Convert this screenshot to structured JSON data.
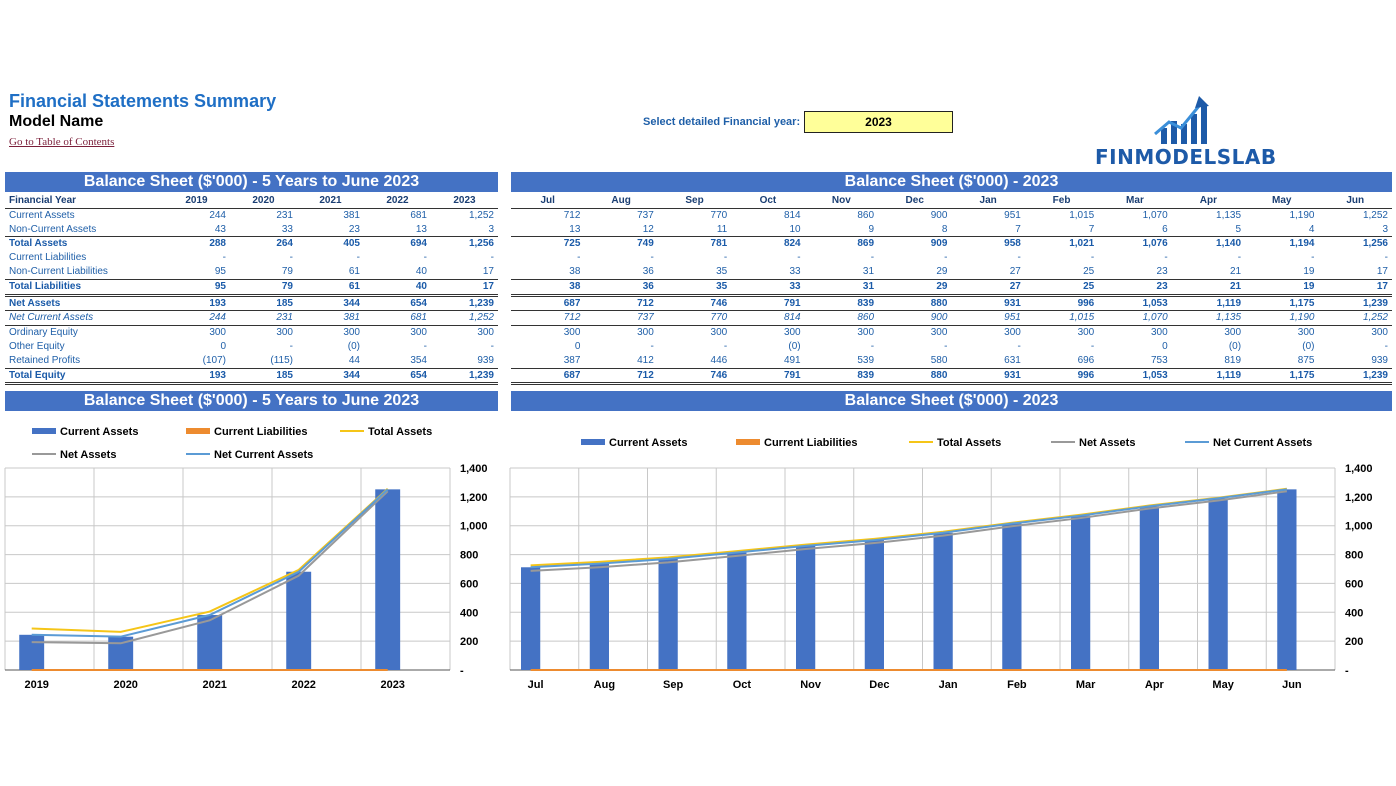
{
  "header": {
    "title": "Financial Statements Summary",
    "model_name": "Model Name",
    "toc_link": "Go to Table of Contents",
    "select_label": "Select detailed Financial year:",
    "selected_year": "2023",
    "logo_text": "FINMODELSLAB"
  },
  "left_table": {
    "banner": "Balance Sheet ($'000) - 5 Years to June 2023",
    "header_label": "Financial Year",
    "columns": [
      "2019",
      "2020",
      "2021",
      "2022",
      "2023"
    ],
    "rows": [
      {
        "label": "Current Assets",
        "values": [
          "244",
          "231",
          "381",
          "681",
          "1,252"
        ],
        "style": ""
      },
      {
        "label": "Non-Current Assets",
        "values": [
          "43",
          "33",
          "23",
          "13",
          "3"
        ],
        "style": "uline"
      },
      {
        "label": "Total Assets",
        "values": [
          "288",
          "264",
          "405",
          "694",
          "1,256"
        ],
        "style": "bold"
      },
      {
        "label": "Current Liabilities",
        "values": [
          "-",
          "-",
          "-",
          "-",
          "-"
        ],
        "style": ""
      },
      {
        "label": "Non-Current Liabilities",
        "values": [
          "95",
          "79",
          "61",
          "40",
          "17"
        ],
        "style": "uline"
      },
      {
        "label": "Total Liabilities",
        "values": [
          "95",
          "79",
          "61",
          "40",
          "17"
        ],
        "style": "bold dbl"
      },
      {
        "label": "Net Assets",
        "values": [
          "193",
          "185",
          "344",
          "654",
          "1,239"
        ],
        "style": "bold uline"
      },
      {
        "label": "Net Current Assets",
        "values": [
          "244",
          "231",
          "381",
          "681",
          "1,252"
        ],
        "style": "ital uline"
      },
      {
        "label": "Ordinary Equity",
        "values": [
          "300",
          "300",
          "300",
          "300",
          "300"
        ],
        "style": ""
      },
      {
        "label": "Other Equity",
        "values": [
          "0",
          "-",
          "(0)",
          "-",
          "-"
        ],
        "style": ""
      },
      {
        "label": "Retained Profits",
        "values": [
          "(107)",
          "(115)",
          "44",
          "354",
          "939"
        ],
        "style": "uline"
      },
      {
        "label": "Total Equity",
        "values": [
          "193",
          "185",
          "344",
          "654",
          "1,239"
        ],
        "style": "bold dbl"
      }
    ]
  },
  "right_table": {
    "banner": "Balance Sheet ($'000) - 2023",
    "columns": [
      "Jul",
      "Aug",
      "Sep",
      "Oct",
      "Nov",
      "Dec",
      "Jan",
      "Feb",
      "Mar",
      "Apr",
      "May",
      "Jun"
    ],
    "rows": [
      {
        "values": [
          "712",
          "737",
          "770",
          "814",
          "860",
          "900",
          "951",
          "1,015",
          "1,070",
          "1,135",
          "1,190",
          "1,252"
        ],
        "style": ""
      },
      {
        "values": [
          "13",
          "12",
          "11",
          "10",
          "9",
          "8",
          "7",
          "7",
          "6",
          "5",
          "4",
          "3"
        ],
        "style": "uline"
      },
      {
        "values": [
          "725",
          "749",
          "781",
          "824",
          "869",
          "909",
          "958",
          "1,021",
          "1,076",
          "1,140",
          "1,194",
          "1,256"
        ],
        "style": "bold"
      },
      {
        "values": [
          "-",
          "-",
          "-",
          "-",
          "-",
          "-",
          "-",
          "-",
          "-",
          "-",
          "-",
          "-"
        ],
        "style": ""
      },
      {
        "values": [
          "38",
          "36",
          "35",
          "33",
          "31",
          "29",
          "27",
          "25",
          "23",
          "21",
          "19",
          "17"
        ],
        "style": "uline"
      },
      {
        "values": [
          "38",
          "36",
          "35",
          "33",
          "31",
          "29",
          "27",
          "25",
          "23",
          "21",
          "19",
          "17"
        ],
        "style": "bold dbl"
      },
      {
        "values": [
          "687",
          "712",
          "746",
          "791",
          "839",
          "880",
          "931",
          "996",
          "1,053",
          "1,119",
          "1,175",
          "1,239"
        ],
        "style": "bold uline"
      },
      {
        "values": [
          "712",
          "737",
          "770",
          "814",
          "860",
          "900",
          "951",
          "1,015",
          "1,070",
          "1,135",
          "1,190",
          "1,252"
        ],
        "style": "ital uline"
      },
      {
        "values": [
          "300",
          "300",
          "300",
          "300",
          "300",
          "300",
          "300",
          "300",
          "300",
          "300",
          "300",
          "300"
        ],
        "style": ""
      },
      {
        "values": [
          "0",
          "-",
          "-",
          "(0)",
          "-",
          "-",
          "-",
          "-",
          "0",
          "(0)",
          "(0)",
          "-"
        ],
        "style": ""
      },
      {
        "values": [
          "387",
          "412",
          "446",
          "491",
          "539",
          "580",
          "631",
          "696",
          "753",
          "819",
          "875",
          "939"
        ],
        "style": "uline"
      },
      {
        "values": [
          "687",
          "712",
          "746",
          "791",
          "839",
          "880",
          "931",
          "996",
          "1,053",
          "1,119",
          "1,175",
          "1,239"
        ],
        "style": "bold dbl"
      }
    ]
  },
  "left_chart_banner": "Balance Sheet ($'000) - 5 Years to June 2023",
  "right_chart_banner": "Balance Sheet ($'000) - 2023",
  "colors": {
    "current_assets": "#4472c4",
    "current_liabilities": "#ed8b2f",
    "total_assets": "#f5c518",
    "net_assets": "#999999",
    "net_current_assets": "#5b9bd5"
  },
  "chart_data": [
    {
      "type": "bar",
      "categories": [
        "2019",
        "2020",
        "2021",
        "2022",
        "2023"
      ],
      "ylim": [
        0,
        1400
      ],
      "yticks": [
        "-",
        "200",
        "400",
        "600",
        "800",
        "1,000",
        "1,200",
        "1,400"
      ],
      "series": [
        {
          "name": "Current Assets",
          "kind": "bar",
          "values": [
            244,
            231,
            381,
            681,
            1252
          ]
        },
        {
          "name": "Current Liabilities",
          "kind": "line",
          "values": [
            0,
            0,
            0,
            0,
            0
          ]
        },
        {
          "name": "Total Assets",
          "kind": "line",
          "values": [
            288,
            264,
            405,
            694,
            1256
          ]
        },
        {
          "name": "Net Assets",
          "kind": "line",
          "values": [
            193,
            185,
            344,
            654,
            1239
          ]
        },
        {
          "name": "Net Current Assets",
          "kind": "line",
          "values": [
            244,
            231,
            381,
            681,
            1252
          ]
        }
      ]
    },
    {
      "type": "bar",
      "categories": [
        "Jul",
        "Aug",
        "Sep",
        "Oct",
        "Nov",
        "Dec",
        "Jan",
        "Feb",
        "Mar",
        "Apr",
        "May",
        "Jun"
      ],
      "ylim": [
        0,
        1400
      ],
      "yticks": [
        "-",
        "200",
        "400",
        "600",
        "800",
        "1,000",
        "1,200",
        "1,400"
      ],
      "series": [
        {
          "name": "Current Assets",
          "kind": "bar",
          "values": [
            712,
            737,
            770,
            814,
            860,
            900,
            951,
            1015,
            1070,
            1135,
            1190,
            1252
          ]
        },
        {
          "name": "Current Liabilities",
          "kind": "line",
          "values": [
            0,
            0,
            0,
            0,
            0,
            0,
            0,
            0,
            0,
            0,
            0,
            0
          ]
        },
        {
          "name": "Total Assets",
          "kind": "line",
          "values": [
            725,
            749,
            781,
            824,
            869,
            909,
            958,
            1021,
            1076,
            1140,
            1194,
            1256
          ]
        },
        {
          "name": "Net Assets",
          "kind": "line",
          "values": [
            687,
            712,
            746,
            791,
            839,
            880,
            931,
            996,
            1053,
            1119,
            1175,
            1239
          ]
        },
        {
          "name": "Net Current Assets",
          "kind": "line",
          "values": [
            712,
            737,
            770,
            814,
            860,
            900,
            951,
            1015,
            1070,
            1135,
            1190,
            1252
          ]
        }
      ]
    }
  ]
}
